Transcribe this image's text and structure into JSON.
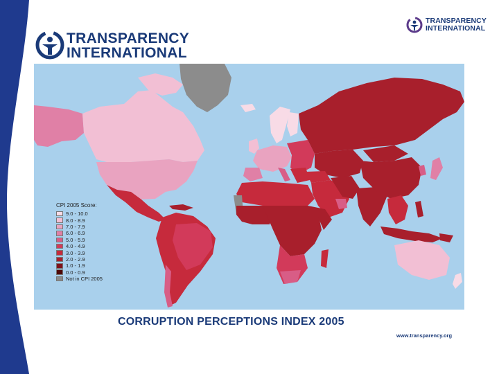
{
  "slide": {
    "caption": "CORRUPTION PERCEPTIONS INDEX 2005",
    "url": "www.transparency.org"
  },
  "logo_large": {
    "line1": "TRANSPARENCY",
    "line2": "INTERNATIONAL"
  },
  "logo_small": {
    "line1": "TRANSPARENCY",
    "line2": "INTERNATIONAL"
  },
  "legend": {
    "title": "CPI 2005 Score:",
    "items": [
      {
        "label": "9.0 - 10.0",
        "color": "#f8dbe6"
      },
      {
        "label": "8.0 - 8.9",
        "color": "#f2bfd4"
      },
      {
        "label": "7.0 - 7.9",
        "color": "#e9a3c0"
      },
      {
        "label": "6.0 - 6.9",
        "color": "#e080a6"
      },
      {
        "label": "5.0 - 5.9",
        "color": "#d85d86"
      },
      {
        "label": "4.0 - 4.9",
        "color": "#d23a5a"
      },
      {
        "label": "3.0 - 3.9",
        "color": "#c62a3c"
      },
      {
        "label": "2.0 - 2.9",
        "color": "#a81f2c"
      },
      {
        "label": "1.0 - 1.9",
        "color": "#7e121c"
      },
      {
        "label": "0.0 - 0.9",
        "color": "#4e0808"
      },
      {
        "label": "Not in CPI 2005",
        "color": "#8c8c8c"
      }
    ]
  },
  "colors": {
    "brand_blue": "#1a3a78",
    "ocean": "#a9d0ec",
    "band_blue": "#1f3a8e"
  }
}
